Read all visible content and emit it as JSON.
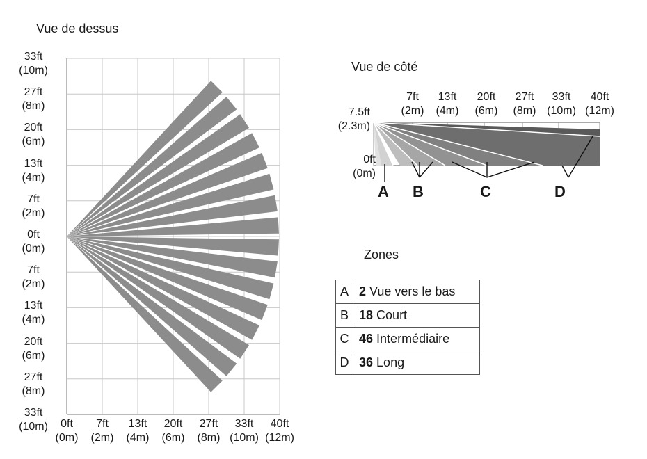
{
  "top_view": {
    "title": "Vue de dessus",
    "y_labels": [
      {
        "ft": "33ft",
        "m": "(10m)"
      },
      {
        "ft": "27ft",
        "m": "(8m)"
      },
      {
        "ft": "20ft",
        "m": "(6m)"
      },
      {
        "ft": "13ft",
        "m": "(4m)"
      },
      {
        "ft": "7ft",
        "m": "(2m)"
      },
      {
        "ft": "0ft",
        "m": "(0m)"
      },
      {
        "ft": "7ft",
        "m": "(2m)"
      },
      {
        "ft": "13ft",
        "m": "(4m)"
      },
      {
        "ft": "20ft",
        "m": "(6m)"
      },
      {
        "ft": "27ft",
        "m": "(8m)"
      },
      {
        "ft": "33ft",
        "m": "(10m)"
      }
    ],
    "x_labels": [
      {
        "ft": "0ft",
        "m": "(0m)"
      },
      {
        "ft": "7ft",
        "m": "(2m)"
      },
      {
        "ft": "13ft",
        "m": "(4m)"
      },
      {
        "ft": "20ft",
        "m": "(6m)"
      },
      {
        "ft": "27ft",
        "m": "(8m)"
      },
      {
        "ft": "33ft",
        "m": "(10m)"
      },
      {
        "ft": "40ft",
        "m": "(12m)"
      }
    ],
    "beam_color": "#8c8c8c"
  },
  "side_view": {
    "title": "Vue de côté",
    "top_labels": [
      {
        "ft": "7ft",
        "m": "(2m)"
      },
      {
        "ft": "13ft",
        "m": "(4m)"
      },
      {
        "ft": "20ft",
        "m": "(6m)"
      },
      {
        "ft": "27ft",
        "m": "(8m)"
      },
      {
        "ft": "33ft",
        "m": "(10m)"
      },
      {
        "ft": "40ft",
        "m": "(12m)"
      }
    ],
    "height_label": {
      "ft": "7.5ft",
      "m": "(2.3m)"
    },
    "ground_label": {
      "ft": "0ft",
      "m": "(0m)"
    },
    "zone_letters": [
      "A",
      "B",
      "C",
      "D"
    ]
  },
  "zones": {
    "title": "Zones",
    "rows": [
      {
        "key": "A",
        "count": "2",
        "name": "Vue vers le bas"
      },
      {
        "key": "B",
        "count": "18",
        "name": "Court"
      },
      {
        "key": "C",
        "count": "46",
        "name": "Intermédiaire"
      },
      {
        "key": "D",
        "count": "36",
        "name": "Long"
      }
    ]
  }
}
